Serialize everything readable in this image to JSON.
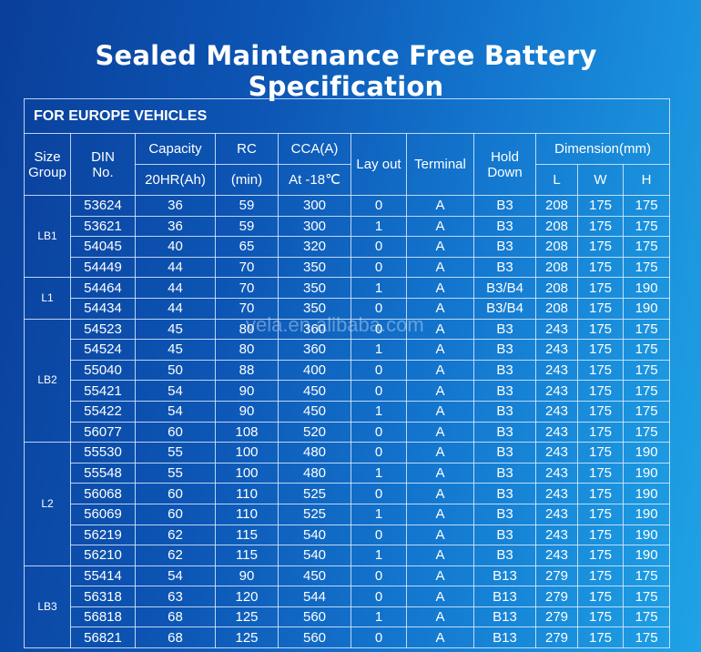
{
  "title": "Sealed Maintenance Free Battery Specification",
  "watermark": "vela.en.alibaba.com",
  "table": {
    "section": "FOR EUROPE VEHICLES",
    "headers": {
      "size_group": "Size Group",
      "din": "DIN No.",
      "capacity": "Capacity",
      "capacity_unit": "20HR(Ah)",
      "rc": "RC",
      "rc_unit": "(min)",
      "cca": "CCA(A)",
      "cca_unit": "At -18℃",
      "layout": "Lay out",
      "terminal": "Terminal",
      "hold_down": "Hold Down",
      "dimension": "Dimension(mm)",
      "l": "L",
      "w": "W",
      "h": "H"
    },
    "groups": [
      {
        "name": "LB1",
        "rows": [
          [
            53624,
            36,
            59,
            300,
            0,
            "A",
            "B3",
            208,
            175,
            175
          ],
          [
            53621,
            36,
            59,
            300,
            1,
            "A",
            "B3",
            208,
            175,
            175
          ],
          [
            54045,
            40,
            65,
            320,
            0,
            "A",
            "B3",
            208,
            175,
            175
          ],
          [
            54449,
            44,
            70,
            350,
            0,
            "A",
            "B3",
            208,
            175,
            175
          ]
        ]
      },
      {
        "name": "L1",
        "rows": [
          [
            54464,
            44,
            70,
            350,
            1,
            "A",
            "B3/B4",
            208,
            175,
            190
          ],
          [
            54434,
            44,
            70,
            350,
            0,
            "A",
            "B3/B4",
            208,
            175,
            190
          ]
        ]
      },
      {
        "name": "LB2",
        "rows": [
          [
            54523,
            45,
            80,
            360,
            0,
            "A",
            "B3",
            243,
            175,
            175
          ],
          [
            54524,
            45,
            80,
            360,
            1,
            "A",
            "B3",
            243,
            175,
            175
          ],
          [
            55040,
            50,
            88,
            400,
            0,
            "A",
            "B3",
            243,
            175,
            175
          ],
          [
            55421,
            54,
            90,
            450,
            0,
            "A",
            "B3",
            243,
            175,
            175
          ],
          [
            55422,
            54,
            90,
            450,
            1,
            "A",
            "B3",
            243,
            175,
            175
          ],
          [
            56077,
            60,
            108,
            520,
            0,
            "A",
            "B3",
            243,
            175,
            175
          ]
        ]
      },
      {
        "name": "L2",
        "rows": [
          [
            55530,
            55,
            100,
            480,
            0,
            "A",
            "B3",
            243,
            175,
            190
          ],
          [
            55548,
            55,
            100,
            480,
            1,
            "A",
            "B3",
            243,
            175,
            190
          ],
          [
            56068,
            60,
            110,
            525,
            0,
            "A",
            "B3",
            243,
            175,
            190
          ],
          [
            56069,
            60,
            110,
            525,
            1,
            "A",
            "B3",
            243,
            175,
            190
          ],
          [
            56219,
            62,
            115,
            540,
            0,
            "A",
            "B3",
            243,
            175,
            190
          ],
          [
            56210,
            62,
            115,
            540,
            1,
            "A",
            "B3",
            243,
            175,
            190
          ]
        ]
      },
      {
        "name": "LB3",
        "rows": [
          [
            55414,
            54,
            90,
            450,
            0,
            "A",
            "B13",
            279,
            175,
            175
          ],
          [
            56318,
            63,
            120,
            544,
            0,
            "A",
            "B13",
            279,
            175,
            175
          ],
          [
            56818,
            68,
            125,
            560,
            1,
            "A",
            "B13",
            279,
            175,
            175
          ],
          [
            56821,
            68,
            125,
            560,
            0,
            "A",
            "B13",
            279,
            175,
            175
          ]
        ]
      }
    ]
  }
}
